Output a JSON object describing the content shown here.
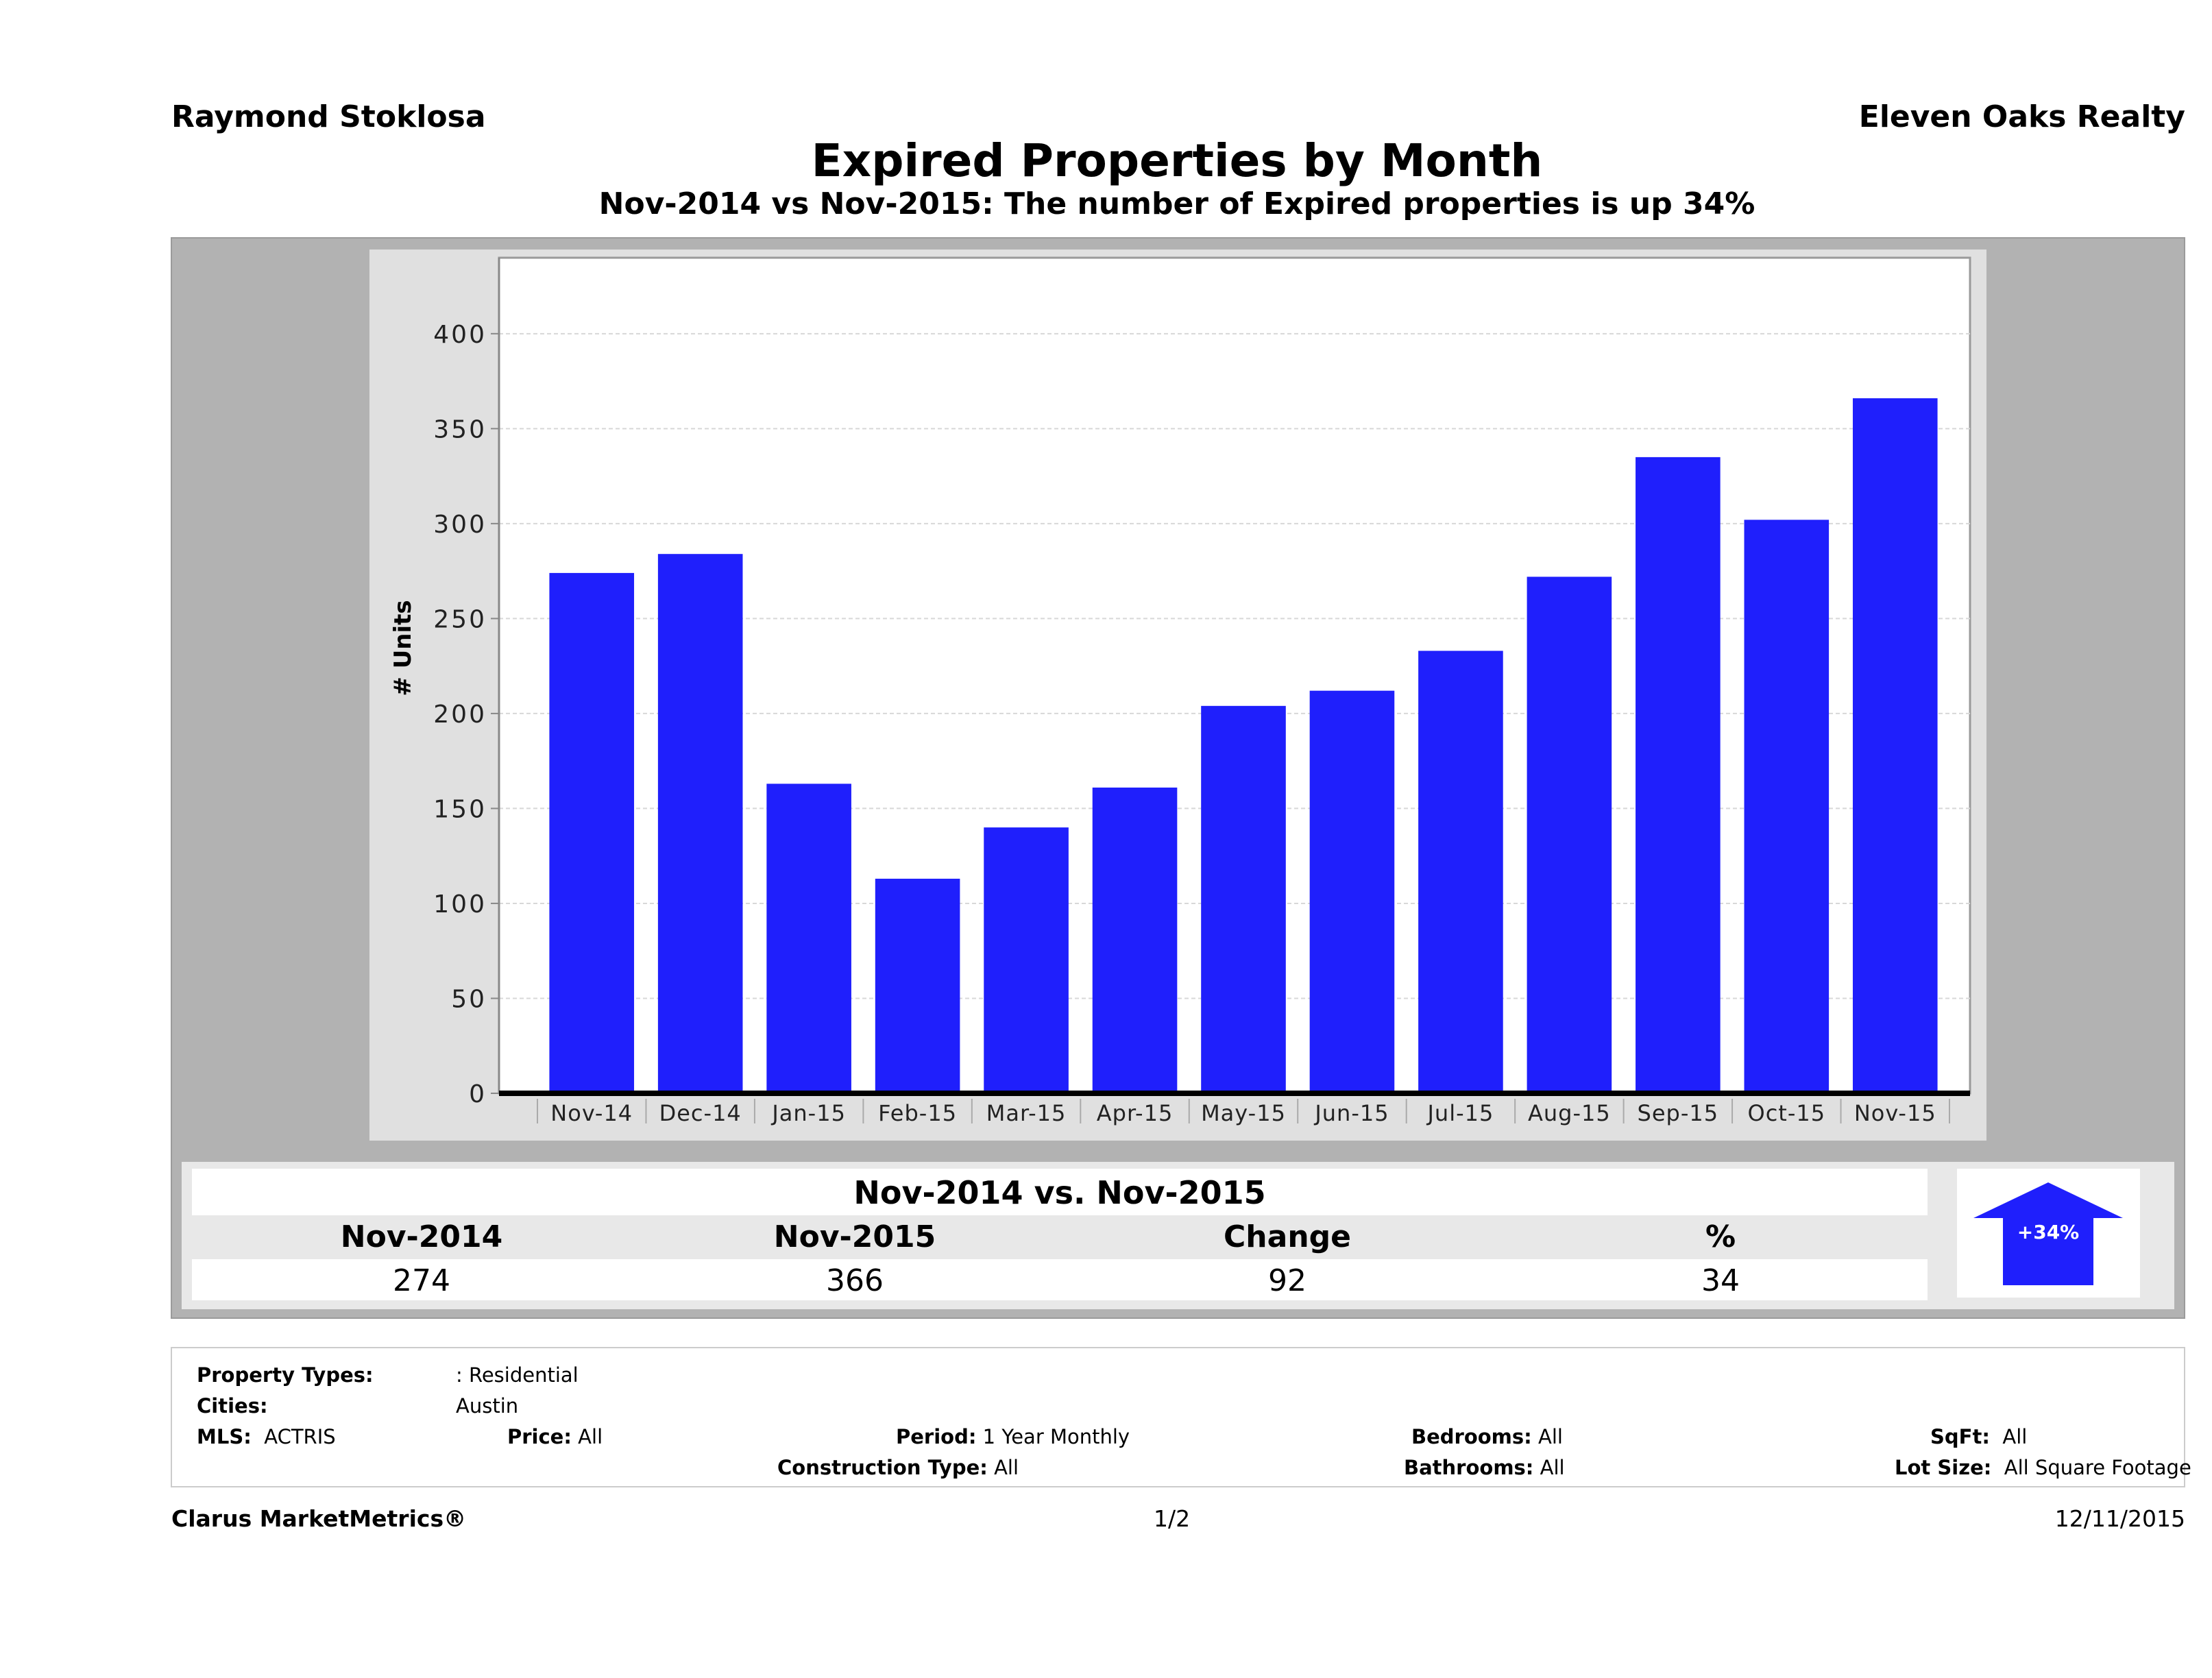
{
  "header": {
    "agent_name": "Raymond Stoklosa",
    "brokerage": "Eleven Oaks Realty",
    "title": "Expired Properties by Month",
    "subtitle": "Nov-2014 vs Nov-2015: The number of Expired  properties is up 34%"
  },
  "chart_data": {
    "type": "bar",
    "title": "Expired Properties by Month",
    "xlabel": "",
    "ylabel": "# Units",
    "categories": [
      "Nov-14",
      "Dec-14",
      "Jan-15",
      "Feb-15",
      "Mar-15",
      "Apr-15",
      "May-15",
      "Jun-15",
      "Jul-15",
      "Aug-15",
      "Sep-15",
      "Oct-15",
      "Nov-15"
    ],
    "values": [
      274,
      284,
      163,
      113,
      140,
      161,
      204,
      212,
      233,
      272,
      335,
      302,
      366
    ],
    "ylim": [
      0,
      440
    ],
    "yticks": [
      0,
      50,
      100,
      150,
      200,
      250,
      300,
      350,
      400
    ],
    "grid": true,
    "legend": "none",
    "bar_color": "#1f1ffc"
  },
  "summary": {
    "title": "Nov-2014 vs. Nov-2015",
    "columns": [
      "Nov-2014",
      "Nov-2015",
      "Change",
      "%"
    ],
    "values": [
      "274",
      "366",
      "92",
      "34"
    ],
    "badge": "+34%",
    "badge_color": "#1f1ffc",
    "direction": "up"
  },
  "filters": {
    "property_types_label": "Property Types:",
    "property_types_value": ": Residential",
    "cities_label": "Cities:",
    "cities_value": "Austin",
    "mls_label": "MLS:",
    "mls_value": "ACTRIS",
    "price_label": "Price:",
    "price_value": "All",
    "period_label": "Period:",
    "period_value": "1 Year Monthly",
    "construction_label": "Construction Type:",
    "construction_value": "All",
    "bedrooms_label": "Bedrooms:",
    "bedrooms_value": "All",
    "bathrooms_label": "Bathrooms:",
    "bathrooms_value": "All",
    "sqft_label": "SqFt:",
    "sqft_value": "All",
    "lotsize_label": "Lot Size:",
    "lotsize_value": "All Square Footage"
  },
  "footer": {
    "brand": "Clarus MarketMetrics®",
    "page": "1/2",
    "date": "12/11/2015"
  }
}
